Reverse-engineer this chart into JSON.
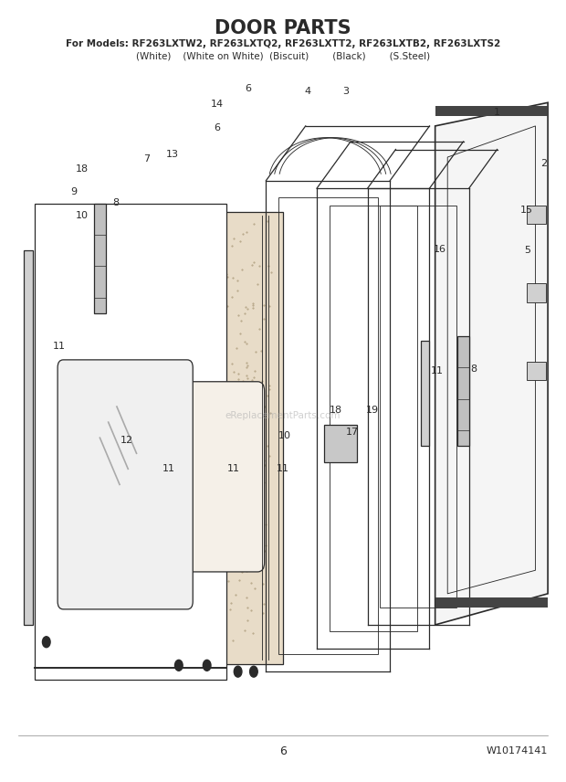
{
  "title": "DOOR PARTS",
  "subtitle1": "For Models: RF263LXTW2, RF263LXTQ2, RF263LXTT2, RF263LXTB2, RF263LXTS2",
  "subtitle2": "(White)    (White on White)  (Biscuit)        (Black)        (S.Steel)",
  "page_number": "6",
  "part_number": "W10174141",
  "watermark": "eReplacementParts.com",
  "bg_color": "#ffffff",
  "line_color": "#2a2a2a",
  "title_fontsize": 15,
  "subtitle_fontsize": 7.5,
  "label_fontsize": 8
}
